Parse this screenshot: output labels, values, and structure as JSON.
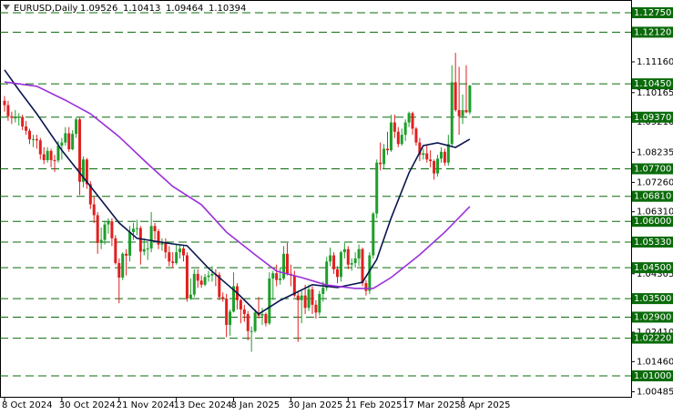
{
  "chart_data": {
    "type": "candlestick",
    "title": "EURUSD,Daily",
    "categories": [
      "8 Oct 2024",
      null,
      null,
      null,
      null,
      null,
      null,
      null,
      null,
      null,
      null,
      null,
      null,
      null,
      null,
      null,
      "30 Oct 2024",
      null,
      null,
      null,
      null,
      null,
      null,
      null,
      null,
      null,
      null,
      null,
      null,
      null,
      null,
      null,
      "21 Nov 2024",
      null,
      null,
      null,
      null,
      null,
      null,
      null,
      null,
      null,
      null,
      null,
      null,
      null,
      null,
      null,
      "13 Dec 2024",
      null,
      null,
      null,
      null,
      null,
      null,
      null,
      null,
      null,
      null,
      null,
      null,
      null,
      null,
      null,
      "8 Jan 2025",
      null,
      null,
      null,
      null,
      null,
      null,
      null,
      null,
      null,
      null,
      null,
      null,
      null,
      null,
      null,
      "30 Jan 2025",
      null,
      null,
      null,
      null,
      null,
      null,
      null,
      null,
      null,
      null,
      null,
      null,
      null,
      null,
      null,
      "21 Feb 2025",
      null,
      null,
      null,
      null,
      null,
      null,
      null,
      null,
      null,
      null,
      null,
      null,
      null,
      null,
      null,
      "17 Mar 2025",
      null,
      null,
      null,
      null,
      null,
      null,
      null,
      null,
      null,
      null,
      null,
      null,
      null,
      null,
      null,
      "8 Apr 2025",
      null,
      null
    ],
    "candles": [
      [
        1.099,
        1.1005,
        1.0955,
        1.0976
      ],
      [
        1.0976,
        1.099,
        1.0925,
        1.094
      ],
      [
        1.094,
        1.0955,
        1.0915,
        1.0935
      ],
      [
        1.0935,
        1.096,
        1.092,
        1.0936
      ],
      [
        1.0936,
        1.095,
        1.091,
        1.0938
      ],
      [
        1.0938,
        1.0945,
        1.0895,
        1.0907
      ],
      [
        1.0907,
        1.0925,
        1.088,
        1.0893
      ],
      [
        1.0893,
        1.09,
        1.085,
        1.0865
      ],
      [
        1.0865,
        1.088,
        1.084,
        1.0866
      ],
      [
        1.0866,
        1.088,
        1.0835,
        1.0862
      ],
      [
        1.0862,
        1.087,
        1.08,
        1.0817
      ],
      [
        1.0817,
        1.084,
        1.0785,
        1.0798
      ],
      [
        1.0798,
        1.084,
        1.079,
        1.0828
      ],
      [
        1.0828,
        1.0835,
        1.0775,
        1.0798
      ],
      [
        1.0798,
        1.0815,
        1.076,
        1.0797
      ],
      [
        1.0797,
        1.086,
        1.079,
        1.0845
      ],
      [
        1.0845,
        1.087,
        1.08,
        1.0855
      ],
      [
        1.0855,
        1.0905,
        1.0845,
        1.0885
      ],
      [
        1.0885,
        1.0905,
        1.0825,
        1.0833
      ],
      [
        1.0833,
        1.0895,
        1.083,
        1.0883
      ],
      [
        1.0883,
        1.0937,
        1.087,
        1.093
      ],
      [
        1.093,
        1.0935,
        1.0685,
        1.0728
      ],
      [
        1.0728,
        1.081,
        1.071,
        1.08
      ],
      [
        1.08,
        1.0805,
        1.0705,
        1.072
      ],
      [
        1.072,
        1.073,
        1.064,
        1.0655
      ],
      [
        1.0655,
        1.068,
        1.0595,
        1.062
      ],
      [
        1.062,
        1.063,
        1.0495,
        1.053
      ],
      [
        1.053,
        1.058,
        1.051,
        1.054
      ],
      [
        1.054,
        1.06,
        1.0525,
        1.059
      ],
      [
        1.059,
        1.061,
        1.056,
        1.06
      ],
      [
        1.06,
        1.061,
        1.052,
        1.0545
      ],
      [
        1.0545,
        1.0555,
        1.046,
        1.0465
      ],
      [
        1.0465,
        1.048,
        1.0335,
        1.0418
      ],
      [
        1.0418,
        1.05,
        1.041,
        1.0495
      ],
      [
        1.0495,
        1.051,
        1.0425,
        1.0489
      ],
      [
        1.0489,
        1.0585,
        1.047,
        1.0565
      ],
      [
        1.0565,
        1.0595,
        1.054,
        1.0576
      ],
      [
        1.0576,
        1.0605,
        1.0555,
        1.0578
      ],
      [
        1.0578,
        1.0585,
        1.046,
        1.0502
      ],
      [
        1.0502,
        1.0545,
        1.049,
        1.051
      ],
      [
        1.051,
        1.053,
        1.0475,
        1.0512
      ],
      [
        1.0512,
        1.063,
        1.05,
        1.0585
      ],
      [
        1.0585,
        1.0595,
        1.054,
        1.0568
      ],
      [
        1.0568,
        1.0575,
        1.051,
        1.0525
      ],
      [
        1.0525,
        1.0545,
        1.0505,
        1.053
      ],
      [
        1.053,
        1.0545,
        1.048,
        1.05
      ],
      [
        1.05,
        1.052,
        1.0455,
        1.047
      ],
      [
        1.047,
        1.05,
        1.045,
        1.0465
      ],
      [
        1.0465,
        1.0525,
        1.046,
        1.05
      ],
      [
        1.05,
        1.0525,
        1.048,
        1.0512
      ],
      [
        1.0512,
        1.052,
        1.047,
        1.049
      ],
      [
        1.049,
        1.05,
        1.034,
        1.035
      ],
      [
        1.035,
        1.0415,
        1.0345,
        1.0363
      ],
      [
        1.0363,
        1.0445,
        1.0355,
        1.043
      ],
      [
        1.043,
        1.0445,
        1.0385,
        1.0408
      ],
      [
        1.0408,
        1.0425,
        1.0385,
        1.0395
      ],
      [
        1.0395,
        1.043,
        1.039,
        1.042
      ],
      [
        1.042,
        1.044,
        1.0405,
        1.0425
      ],
      [
        1.0425,
        1.0455,
        1.0405,
        1.043
      ],
      [
        1.043,
        1.0445,
        1.039,
        1.0427
      ],
      [
        1.0427,
        1.0435,
        1.0345,
        1.0355
      ],
      [
        1.0355,
        1.037,
        1.034,
        1.035
      ],
      [
        1.035,
        1.0365,
        1.0225,
        1.0265
      ],
      [
        1.0265,
        1.0315,
        1.023,
        1.0308
      ],
      [
        1.0308,
        1.0435,
        1.0305,
        1.039
      ],
      [
        1.039,
        1.04,
        1.0315,
        1.0345
      ],
      [
        1.0345,
        1.035,
        1.027,
        1.0315
      ],
      [
        1.0315,
        1.033,
        1.0275,
        1.03
      ],
      [
        1.03,
        1.031,
        1.0215,
        1.0245
      ],
      [
        1.0245,
        1.026,
        1.0178,
        1.0245
      ],
      [
        1.0245,
        1.0315,
        1.024,
        1.0305
      ],
      [
        1.0305,
        1.0355,
        1.0285,
        1.0295
      ],
      [
        1.0295,
        1.032,
        1.0265,
        1.03
      ],
      [
        1.03,
        1.0305,
        1.026,
        1.027
      ],
      [
        1.027,
        1.0435,
        1.0265,
        1.0415
      ],
      [
        1.0415,
        1.044,
        1.0345,
        1.0432
      ],
      [
        1.0432,
        1.046,
        1.039,
        1.041
      ],
      [
        1.041,
        1.045,
        1.0395,
        1.0415
      ],
      [
        1.0415,
        1.052,
        1.041,
        1.0495
      ],
      [
        1.0495,
        1.053,
        1.0425,
        1.043
      ],
      [
        1.043,
        1.046,
        1.039,
        1.0425
      ],
      [
        1.0425,
        1.044,
        1.0355,
        1.036
      ],
      [
        1.036,
        1.0375,
        1.021,
        1.0345
      ],
      [
        1.0345,
        1.0375,
        1.027,
        1.036
      ],
      [
        1.036,
        1.0395,
        1.03,
        1.032
      ],
      [
        1.032,
        1.0395,
        1.031,
        1.038
      ],
      [
        1.038,
        1.039,
        1.03,
        1.033
      ],
      [
        1.033,
        1.0345,
        1.0285,
        1.0305
      ],
      [
        1.0305,
        1.0375,
        1.0295,
        1.0365
      ],
      [
        1.0365,
        1.0405,
        1.034,
        1.0385
      ],
      [
        1.0385,
        1.0485,
        1.0375,
        1.047
      ],
      [
        1.047,
        1.0515,
        1.0455,
        1.049
      ],
      [
        1.049,
        1.05,
        1.043,
        1.0445
      ],
      [
        1.0445,
        1.0455,
        1.04,
        1.042
      ],
      [
        1.042,
        1.0505,
        1.0405,
        1.05
      ],
      [
        1.05,
        1.053,
        1.048,
        1.051
      ],
      [
        1.051,
        1.052,
        1.0445,
        1.046
      ],
      [
        1.046,
        1.048,
        1.044,
        1.0465
      ],
      [
        1.0465,
        1.05,
        1.045,
        1.048
      ],
      [
        1.048,
        1.0525,
        1.0455,
        1.051
      ],
      [
        1.051,
        1.0515,
        1.039,
        1.04
      ],
      [
        1.04,
        1.041,
        1.036,
        1.0375
      ],
      [
        1.0375,
        1.05,
        1.0365,
        1.049
      ],
      [
        1.049,
        1.063,
        1.048,
        1.0625
      ],
      [
        1.0625,
        1.08,
        1.061,
        1.079
      ],
      [
        1.079,
        1.0855,
        1.0765,
        1.0785
      ],
      [
        1.0785,
        1.085,
        1.077,
        1.0835
      ],
      [
        1.0835,
        1.089,
        1.0815,
        1.083
      ],
      [
        1.083,
        1.0945,
        1.0825,
        1.092
      ],
      [
        1.092,
        1.0945,
        1.087,
        1.089
      ],
      [
        1.089,
        1.0905,
        1.084,
        1.085
      ],
      [
        1.085,
        1.09,
        1.0845,
        1.088
      ],
      [
        1.088,
        1.093,
        1.086,
        1.092
      ],
      [
        1.092,
        1.0955,
        1.0905,
        1.095
      ],
      [
        1.095,
        1.0955,
        1.088,
        1.09
      ],
      [
        1.09,
        1.0905,
        1.0845,
        1.0855
      ],
      [
        1.0855,
        1.087,
        1.0795,
        1.0815
      ],
      [
        1.0815,
        1.0835,
        1.08,
        1.082
      ],
      [
        1.082,
        1.0845,
        1.079,
        1.08
      ],
      [
        1.08,
        1.083,
        1.0775,
        1.0795
      ],
      [
        1.0795,
        1.08,
        1.0735,
        1.0755
      ],
      [
        1.0755,
        1.0815,
        1.0745,
        1.0803
      ],
      [
        1.0803,
        1.084,
        1.079,
        1.0825
      ],
      [
        1.0825,
        1.0835,
        1.078,
        1.079
      ],
      [
        1.079,
        1.088,
        1.078,
        1.085
      ],
      [
        1.085,
        1.1105,
        1.084,
        1.105
      ],
      [
        1.105,
        1.1145,
        1.0955,
        1.096
      ],
      [
        1.096,
        1.11,
        1.088,
        1.094
      ],
      [
        1.094,
        1.101,
        1.0915,
        1.096
      ],
      [
        1.096,
        1.1105,
        1.095,
        1.0953
      ],
      [
        1.09526,
        1.10413,
        1.09464,
        1.10394
      ]
    ],
    "up_color": "#1e9e2a",
    "down_color": "#e02020",
    "series": [
      {
        "color": "#0b1650",
        "x": [
          0,
          4,
          9,
          16,
          24,
          32,
          37,
          47,
          51,
          57,
          65,
          71,
          77,
          86,
          93,
          100,
          104,
          108,
          113,
          117,
          121,
          126,
          130
        ],
        "values": [
          1.109,
          1.1025,
          1.0948,
          1.083,
          1.0713,
          1.0595,
          1.0545,
          1.0527,
          1.0521,
          1.0448,
          1.0368,
          1.03,
          1.0344,
          1.0395,
          1.0386,
          1.0403,
          1.0477,
          1.061,
          1.0757,
          1.0845,
          1.0854,
          1.0839,
          1.0866
        ]
      },
      {
        "color": "#9b30d9",
        "x": [
          0,
          9,
          17,
          24,
          32,
          40,
          47,
          55,
          62,
          70,
          76,
          83,
          90,
          98,
          103,
          108,
          116,
          123,
          130
        ],
        "values": [
          1.1051,
          1.1037,
          1.0992,
          1.0948,
          1.0874,
          1.0786,
          1.0713,
          1.0654,
          1.0565,
          1.0492,
          1.0439,
          1.0418,
          1.0394,
          1.0383,
          1.0383,
          1.0418,
          1.0492,
          1.0565,
          1.0648
        ]
      }
    ],
    "ylim": [
      1.00293,
      1.13162
    ],
    "yticks": [
      {
        "value": 1.1116,
        "label": "1.11160"
      },
      {
        "value": 1.10165,
        "label": "1.10165"
      },
      {
        "value": 1.0921,
        "label": "1.09210"
      },
      {
        "value": 1.08235,
        "label": "1.08235"
      },
      {
        "value": 1.0726,
        "label": "1.07260"
      },
      {
        "value": 1.0631,
        "label": "1.06310"
      },
      {
        "value": 1.04305,
        "label": "1.04305"
      },
      {
        "value": 1.0241,
        "label": "1.02410"
      },
      {
        "value": 1.0146,
        "label": "1.01460"
      },
      {
        "value": 1.00485,
        "label": "1.00485"
      }
    ],
    "levels": [
      {
        "value": 1.1275,
        "label": "1.12750"
      },
      {
        "value": 1.1212,
        "label": "1.12120"
      },
      {
        "value": 1.1045,
        "label": "1.10450"
      },
      {
        "value": 1.0937,
        "label": "1.09370"
      },
      {
        "value": 1.077,
        "label": "1.07700"
      },
      {
        "value": 1.0681,
        "label": "1.06810"
      },
      {
        "value": 1.06,
        "label": "1.06000"
      },
      {
        "value": 1.0533,
        "label": "1.05330"
      },
      {
        "value": 1.045,
        "label": "1.04500"
      },
      {
        "value": 1.035,
        "label": "1.03500"
      },
      {
        "value": 1.029,
        "label": "1.02900"
      },
      {
        "value": 1.0222,
        "label": "1.02220"
      },
      {
        "value": 1.01,
        "label": "1.01000"
      }
    ],
    "level_color": "#0b6b0b"
  }
}
